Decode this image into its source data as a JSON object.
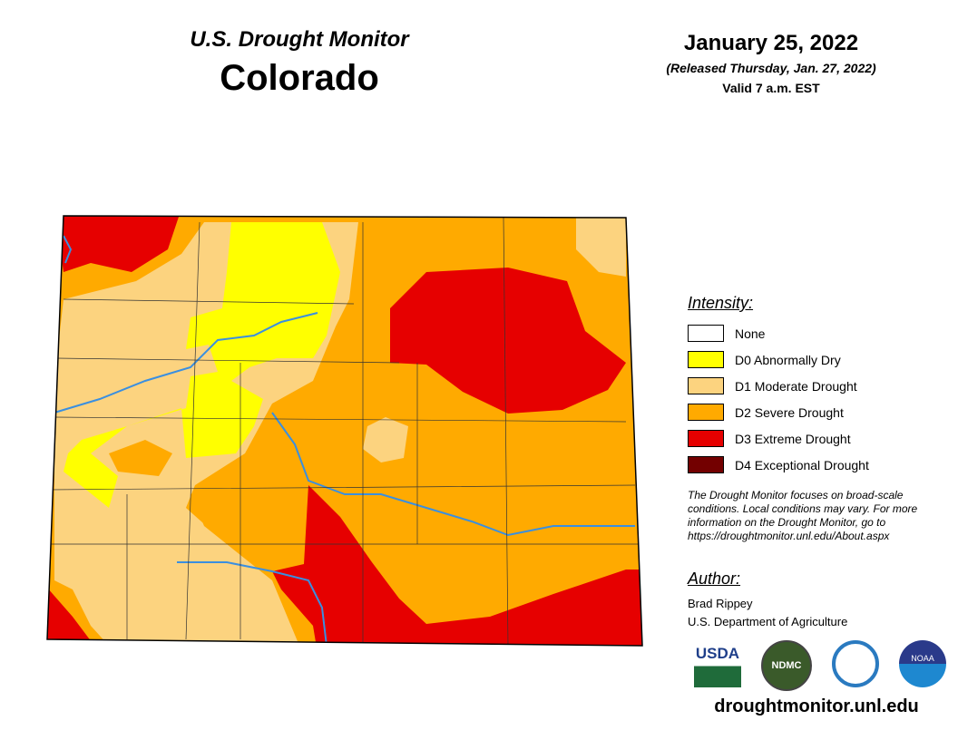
{
  "header": {
    "title": "U.S. Drought Monitor",
    "state": "Colorado",
    "date": "January 25, 2022",
    "released": "(Released Thursday, Jan. 27, 2022)",
    "valid": "Valid 7 a.m. EST"
  },
  "legend": {
    "title": "Intensity:",
    "items": [
      {
        "label": "None",
        "color": "#ffffff"
      },
      {
        "label": "D0 Abnormally Dry",
        "color": "#ffff00"
      },
      {
        "label": "D1 Moderate Drought",
        "color": "#fcd37f"
      },
      {
        "label": "D2 Severe Drought",
        "color": "#ffaa00"
      },
      {
        "label": "D3 Extreme Drought",
        "color": "#e60000"
      },
      {
        "label": "D4 Exceptional Drought",
        "color": "#730000"
      }
    ]
  },
  "note": "The Drought Monitor focuses on broad-scale conditions. Local conditions may vary. For more information on the Drought Monitor, go to https://droughtmonitor.unl.edu/About.aspx",
  "author": {
    "heading": "Author:",
    "name": "Brad Rippey",
    "org": "U.S. Department of Agriculture"
  },
  "logos": [
    "USDA",
    "NDMC",
    "DOC",
    "NOAA"
  ],
  "url": "droughtmonitor.unl.edu",
  "colors": {
    "river": "#3a8fe0"
  }
}
